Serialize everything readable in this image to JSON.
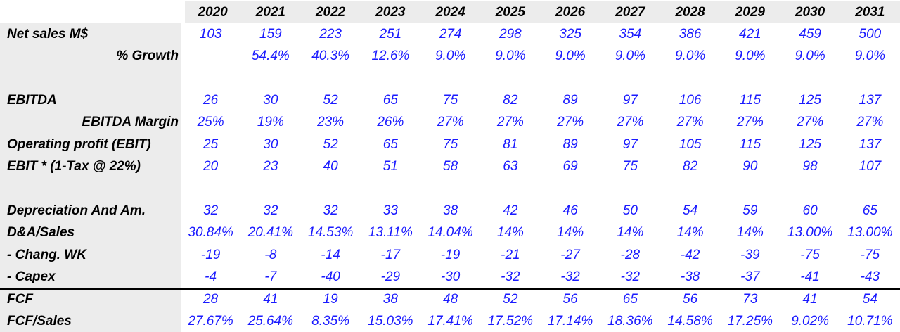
{
  "colors": {
    "value_text": "#1a1aff",
    "label_text": "#000000",
    "band_background": "#ececec",
    "divider_line": "#000000"
  },
  "table": {
    "years": [
      "2020",
      "2021",
      "2022",
      "2023",
      "2024",
      "2025",
      "2026",
      "2027",
      "2028",
      "2029",
      "2030",
      "2031"
    ],
    "rows": [
      {
        "label": "Net sales M$",
        "label_align": "left",
        "style": "normal",
        "values": [
          "103",
          "159",
          "223",
          "251",
          "274",
          "298",
          "325",
          "354",
          "386",
          "421",
          "459",
          "500"
        ]
      },
      {
        "label": "% Growth",
        "label_align": "right",
        "style": "normal",
        "values": [
          "",
          "54.4%",
          "40.3%",
          "12.6%",
          "9.0%",
          "9.0%",
          "9.0%",
          "9.0%",
          "9.0%",
          "9.0%",
          "9.0%",
          "9.0%"
        ]
      },
      {
        "label": "",
        "label_align": "left",
        "style": "spacer",
        "values": [
          "",
          "",
          "",
          "",
          "",
          "",
          "",
          "",
          "",
          "",
          "",
          ""
        ]
      },
      {
        "label": "EBITDA",
        "label_align": "left",
        "style": "normal",
        "values": [
          "26",
          "30",
          "52",
          "65",
          "75",
          "82",
          "89",
          "97",
          "106",
          "115",
          "125",
          "137"
        ]
      },
      {
        "label": "EBITDA Margin",
        "label_align": "right",
        "style": "normal",
        "values": [
          "25%",
          "19%",
          "23%",
          "26%",
          "27%",
          "27%",
          "27%",
          "27%",
          "27%",
          "27%",
          "27%",
          "27%"
        ]
      },
      {
        "label": "Operating profit (EBIT)",
        "label_align": "left",
        "style": "normal",
        "values": [
          "25",
          "30",
          "52",
          "65",
          "75",
          "81",
          "89",
          "97",
          "105",
          "115",
          "125",
          "137"
        ]
      },
      {
        "label": "EBIT * (1-Tax @ 22%)",
        "label_align": "left",
        "style": "normal",
        "values": [
          "20",
          "23",
          "40",
          "51",
          "58",
          "63",
          "69",
          "75",
          "82",
          "90",
          "98",
          "107"
        ]
      },
      {
        "label": "",
        "label_align": "left",
        "style": "spacer",
        "values": [
          "",
          "",
          "",
          "",
          "",
          "",
          "",
          "",
          "",
          "",
          "",
          ""
        ]
      },
      {
        "label": "Depreciation And Am.",
        "label_align": "left",
        "style": "normal",
        "values": [
          "32",
          "32",
          "32",
          "33",
          "38",
          "42",
          "46",
          "50",
          "54",
          "59",
          "60",
          "65"
        ]
      },
      {
        "label": "D&A/Sales",
        "label_align": "left",
        "style": "normal",
        "values": [
          "30.84%",
          "20.41%",
          "14.53%",
          "13.11%",
          "14.04%",
          "14%",
          "14%",
          "14%",
          "14%",
          "14%",
          "13.00%",
          "13.00%"
        ]
      },
      {
        "label": "- Chang. WK",
        "label_align": "left",
        "style": "normal",
        "values": [
          "-19",
          "-8",
          "-14",
          "-17",
          "-19",
          "-21",
          "-27",
          "-28",
          "-42",
          "-39",
          "-75",
          "-75"
        ]
      },
      {
        "label": "- Capex",
        "label_align": "left",
        "style": "normal",
        "values": [
          "-4",
          "-7",
          "-40",
          "-29",
          "-30",
          "-32",
          "-32",
          "-32",
          "-38",
          "-37",
          "-41",
          "-43"
        ]
      },
      {
        "label": "FCF",
        "label_align": "left",
        "style": "total",
        "values": [
          "28",
          "41",
          "19",
          "38",
          "48",
          "52",
          "56",
          "65",
          "56",
          "73",
          "41",
          "54"
        ]
      },
      {
        "label": "FCF/Sales",
        "label_align": "left",
        "style": "normal",
        "values": [
          "27.67%",
          "25.64%",
          "8.35%",
          "15.03%",
          "17.41%",
          "17.52%",
          "17.14%",
          "18.36%",
          "14.58%",
          "17.25%",
          "9.02%",
          "10.71%"
        ]
      }
    ]
  }
}
